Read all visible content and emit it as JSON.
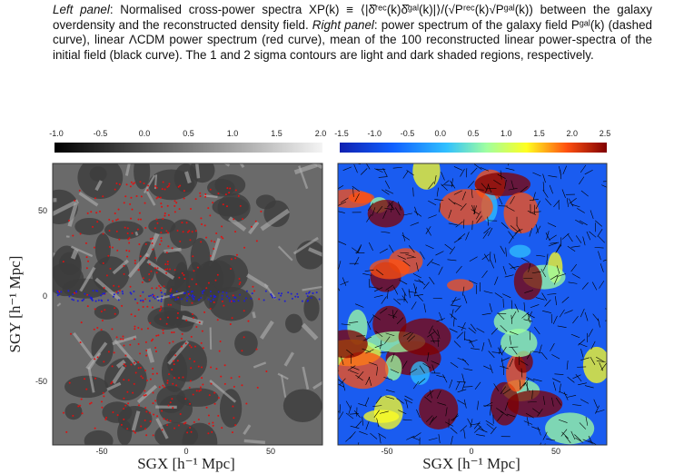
{
  "caption": {
    "left_label": "Left panel",
    "left_text": ": Normalised cross-power spectra XP(k) ≡ ⟨|δ̂ʳᵉᶜ(k)δ̂ᵍᵃˡ(k)|⟩/(√Pʳᵉᶜ(k)√Pᵍᵃˡ(k)) between the galaxy overdensity and the reconstructed density field.",
    "right_label": "Right panel",
    "right_text": ": power spectrum of the galaxy field Pᵍᵃˡ(k) (dashed curve), linear ΛCDM power spectrum (red curve), mean of the 100 reconstructed linear power-spectra of the initial field (black curve). The 1 and 2 sigma contours are light and dark shaded regions, respectively."
  },
  "left_panel": {
    "colorbar_ticks": [
      "-1.0",
      "-0.5",
      "0.0",
      "0.5",
      "1.0",
      "1.5",
      "2.0"
    ],
    "x_ticks": [
      "-50",
      "0",
      "50"
    ],
    "y_ticks": [
      "50",
      "0",
      "-50"
    ],
    "x_label": "SGX [h⁻¹ Mpc]",
    "y_label": "SGY [h⁻¹ Mpc]"
  },
  "right_panel": {
    "colorbar_ticks": [
      "-1.5",
      "-1.0",
      "-0.5",
      "0.0",
      "0.5",
      "1.0",
      "1.5",
      "2.0",
      "2.5"
    ],
    "x_ticks": [
      "-50",
      "0",
      "50"
    ],
    "x_label": "SGX [h⁻¹ Mpc]"
  }
}
